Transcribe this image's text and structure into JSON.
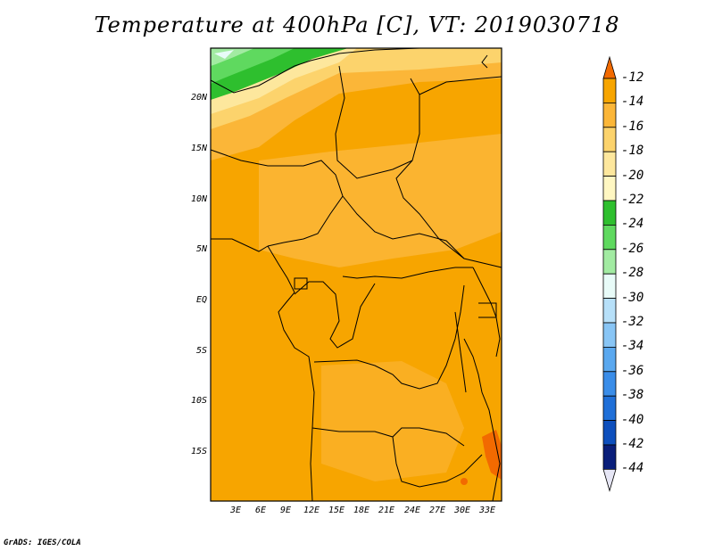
{
  "title": "Temperature at 400hPa [C], VT: 2019030718",
  "credit": "GrADS: IGES/COLA",
  "lat_labels": [
    "20N",
    "15N",
    "10N",
    "5N",
    "EQ",
    "5S",
    "10S",
    "15S"
  ],
  "lon_labels": [
    "3E",
    "6E",
    "9E",
    "12E",
    "15E",
    "18E",
    "21E",
    "24E",
    "27E",
    "30E",
    "33E"
  ],
  "colorbar": {
    "labels": [
      "-12",
      "-14",
      "-16",
      "-18",
      "-20",
      "-22",
      "-24",
      "-26",
      "-28",
      "-30",
      "-32",
      "-34",
      "-36",
      "-38",
      "-40",
      "-42",
      "-44"
    ],
    "colors": [
      "#f26a00",
      "#f7a500",
      "#fbb638",
      "#fcd36c",
      "#fde79d",
      "#fff7c2",
      "#2ebf2e",
      "#5fd95f",
      "#a2eba2",
      "#e8fbf8",
      "#b7e0f9",
      "#88c5f5",
      "#5aa8ef",
      "#3a8de8",
      "#1f6fd8",
      "#0d4fbd",
      "#091e7a",
      "#e6e6f5"
    ]
  },
  "colors": {
    "dominant": "#f7a500",
    "land_north": "#fbb638",
    "sahara_band": "#fcd36c",
    "warm_spot": "#f26a00",
    "green": "#2ebf2e",
    "border": "#000000"
  }
}
